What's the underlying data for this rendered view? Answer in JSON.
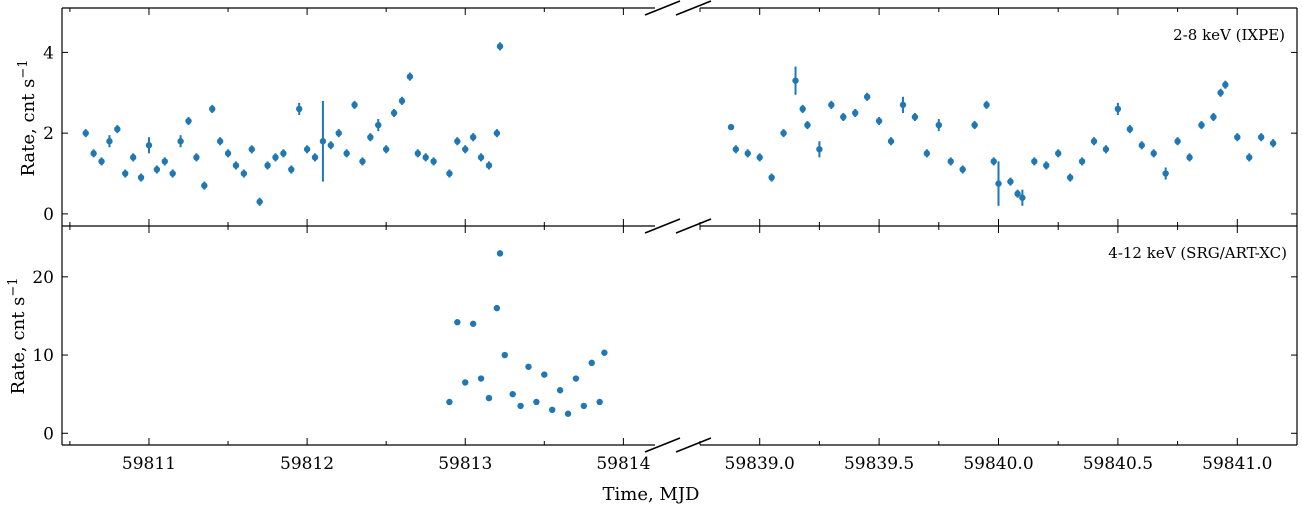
{
  "chart_data": [
    {
      "type": "scatter",
      "panel_label": "2-8 keV (IXPE)",
      "ylabel": "Rate, cnt s",
      "ylabel_superscript": "−1",
      "ylim": [
        -0.3,
        5.1
      ],
      "yticks": [
        0,
        2,
        4
      ],
      "xlim_left": [
        59810.45,
        59814.2
      ],
      "xlim_right": [
        59838.75,
        59841.25
      ],
      "color": "#1f77b4",
      "series": [
        {
          "x": [
            59810.6,
            59810.65,
            59810.7,
            59810.75,
            59810.8,
            59810.85,
            59810.9,
            59810.95,
            59811.0,
            59811.05,
            59811.1,
            59811.15,
            59811.2,
            59811.25,
            59811.3,
            59811.35,
            59811.4,
            59811.45,
            59811.5,
            59811.55,
            59811.6,
            59811.65,
            59811.7,
            59811.75,
            59811.8,
            59811.85,
            59811.9,
            59811.95,
            59812.0,
            59812.05,
            59812.1,
            59812.15,
            59812.2,
            59812.25,
            59812.3,
            59812.35,
            59812.4,
            59812.45,
            59812.5,
            59812.55,
            59812.6,
            59812.65,
            59812.7,
            59812.75,
            59812.8,
            59812.9,
            59812.95,
            59813.0,
            59813.05,
            59813.1,
            59813.15,
            59813.2,
            59813.22
          ],
          "y": [
            2.0,
            1.5,
            1.3,
            1.8,
            2.1,
            1.0,
            1.4,
            0.9,
            1.7,
            1.1,
            1.3,
            1.0,
            1.8,
            2.3,
            1.4,
            0.7,
            2.6,
            1.8,
            1.5,
            1.2,
            1.0,
            1.6,
            0.3,
            1.2,
            1.4,
            1.5,
            1.1,
            2.6,
            1.6,
            1.4,
            1.8,
            1.7,
            2.0,
            1.5,
            2.7,
            1.3,
            1.9,
            2.2,
            1.6,
            2.5,
            2.8,
            3.4,
            1.5,
            1.4,
            1.3,
            1.0,
            1.8,
            1.6,
            1.9,
            1.4,
            1.2,
            2.0,
            4.15
          ],
          "err": [
            0.1,
            0.1,
            0.1,
            0.15,
            0.1,
            0.1,
            0.1,
            0.1,
            0.2,
            0.1,
            0.1,
            0.1,
            0.15,
            0.1,
            0.1,
            0.1,
            0.1,
            0.1,
            0.1,
            0.1,
            0.1,
            0.1,
            0.1,
            0.1,
            0.1,
            0.1,
            0.1,
            0.15,
            0.1,
            0.1,
            1.0,
            0.1,
            0.1,
            0.1,
            0.1,
            0.1,
            0.1,
            0.15,
            0.1,
            0.1,
            0.1,
            0.1,
            0.1,
            0.1,
            0.1,
            0.1,
            0.1,
            0.1,
            0.1,
            0.1,
            0.1,
            0.1,
            0.1
          ]
        },
        {
          "x": [
            59838.88,
            59838.9,
            59838.95,
            59839.0,
            59839.05,
            59839.1,
            59839.15,
            59839.18,
            59839.2,
            59839.25,
            59839.3,
            59839.35,
            59839.4,
            59839.45,
            59839.5,
            59839.55,
            59839.6,
            59839.65,
            59839.7,
            59839.75,
            59839.8,
            59839.85,
            59839.9,
            59839.95,
            59839.98,
            59840.0,
            59840.05,
            59840.08,
            59840.1,
            59840.15,
            59840.2,
            59840.25,
            59840.3,
            59840.35,
            59840.4,
            59840.45,
            59840.5,
            59840.55,
            59840.6,
            59840.65,
            59840.7,
            59840.75,
            59840.8,
            59840.85,
            59840.9,
            59840.93,
            59840.95,
            59841.0,
            59841.05,
            59841.1,
            59841.15
          ],
          "y": [
            2.15,
            1.6,
            1.5,
            1.4,
            0.9,
            2.0,
            3.3,
            2.6,
            2.2,
            1.6,
            2.7,
            2.4,
            2.5,
            2.9,
            2.3,
            1.8,
            2.7,
            2.4,
            1.5,
            2.2,
            1.3,
            1.1,
            2.2,
            2.7,
            1.3,
            0.75,
            0.8,
            0.5,
            0.4,
            1.3,
            1.2,
            1.5,
            0.9,
            1.3,
            1.8,
            1.6,
            2.6,
            2.1,
            1.7,
            1.5,
            1.0,
            1.8,
            1.4,
            2.2,
            2.4,
            3.0,
            3.2,
            1.9,
            1.4,
            1.9,
            1.75
          ],
          "err": [
            0.05,
            0.1,
            0.1,
            0.1,
            0.1,
            0.1,
            0.35,
            0.1,
            0.1,
            0.2,
            0.1,
            0.1,
            0.1,
            0.1,
            0.1,
            0.1,
            0.2,
            0.1,
            0.1,
            0.15,
            0.1,
            0.1,
            0.1,
            0.1,
            0.1,
            0.55,
            0.1,
            0.1,
            0.2,
            0.1,
            0.1,
            0.1,
            0.1,
            0.1,
            0.1,
            0.1,
            0.15,
            0.1,
            0.1,
            0.1,
            0.15,
            0.1,
            0.1,
            0.1,
            0.1,
            0.1,
            0.1,
            0.1,
            0.1,
            0.1,
            0.1
          ]
        }
      ]
    },
    {
      "type": "scatter",
      "panel_label": "4-12 keV (SRG/ART-XC)",
      "ylabel": "Rate, cnt s",
      "ylabel_superscript": "−1",
      "ylim": [
        -1.5,
        26.5
      ],
      "yticks": [
        0,
        10,
        20
      ],
      "xlim_left": [
        59810.45,
        59814.2
      ],
      "xlim_right": [
        59838.75,
        59841.25
      ],
      "color": "#1f77b4",
      "series": [
        {
          "x": [
            59812.9,
            59812.95,
            59813.0,
            59813.05,
            59813.1,
            59813.15,
            59813.2,
            59813.22,
            59813.25,
            59813.3,
            59813.35,
            59813.4,
            59813.45,
            59813.5,
            59813.55,
            59813.6,
            59813.65,
            59813.7,
            59813.75,
            59813.8,
            59813.85,
            59813.88
          ],
          "y": [
            4.0,
            14.2,
            6.5,
            14.0,
            7.0,
            4.5,
            16.0,
            23.0,
            10.0,
            5.0,
            3.5,
            8.5,
            4.0,
            7.5,
            3.0,
            5.5,
            2.5,
            7.0,
            3.5,
            9.0,
            4.0,
            10.3
          ]
        }
      ],
      "range_note": ""
    }
  ],
  "xticks_left": [
    "59811",
    "59812",
    "59813",
    "59814"
  ],
  "xticks_right": [
    "59839.0",
    "59839.5",
    "59840.0",
    "59840.5",
    "59841.0"
  ],
  "xlabel": "Time, MJD"
}
